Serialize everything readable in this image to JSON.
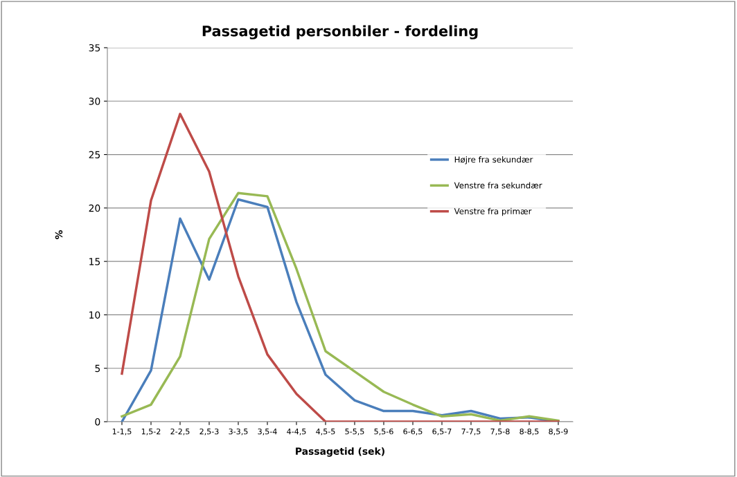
{
  "chart_data": {
    "type": "line",
    "title": "Passagetid personbiler - fordeling",
    "xlabel": "Passagetid (sek)",
    "ylabel": "%",
    "categories": [
      "1-1,5",
      "1,5-2",
      "2-2,5",
      "2,5-3",
      "3-3,5",
      "3,5-4",
      "4-4,5",
      "4,5-5",
      "5-5,5",
      "5,5-6",
      "6-6,5",
      "6,5-7",
      "7-7,5",
      "7,5-8",
      "8-8,5",
      "8,5-9"
    ],
    "series": [
      {
        "name": "Højre fra sekundær",
        "color": "#4a7ebb",
        "values": [
          0,
          4.8,
          19.0,
          13.3,
          20.8,
          20.1,
          11.2,
          4.4,
          2.0,
          1.0,
          1.0,
          0.6,
          1.0,
          0.3,
          0.4,
          0.0
        ]
      },
      {
        "name": "Venstre fra sekundær",
        "color": "#98b954",
        "values": [
          0.5,
          1.6,
          6.1,
          17.1,
          21.4,
          21.1,
          14.3,
          6.6,
          4.7,
          2.8,
          1.6,
          0.5,
          0.7,
          0.1,
          0.5,
          0.1
        ]
      },
      {
        "name": "Venstre fra primær",
        "color": "#be4b48",
        "values": [
          4.5,
          20.7,
          28.8,
          23.4,
          13.6,
          6.3,
          2.6,
          0,
          0,
          0,
          0,
          0,
          0,
          0,
          0,
          0
        ]
      }
    ],
    "ylim": [
      0,
      35
    ],
    "yticks": [
      0,
      5,
      10,
      15,
      20,
      25,
      30,
      35
    ],
    "grid": "y",
    "legend": "right",
    "marker": "none",
    "line_style": "solid"
  }
}
